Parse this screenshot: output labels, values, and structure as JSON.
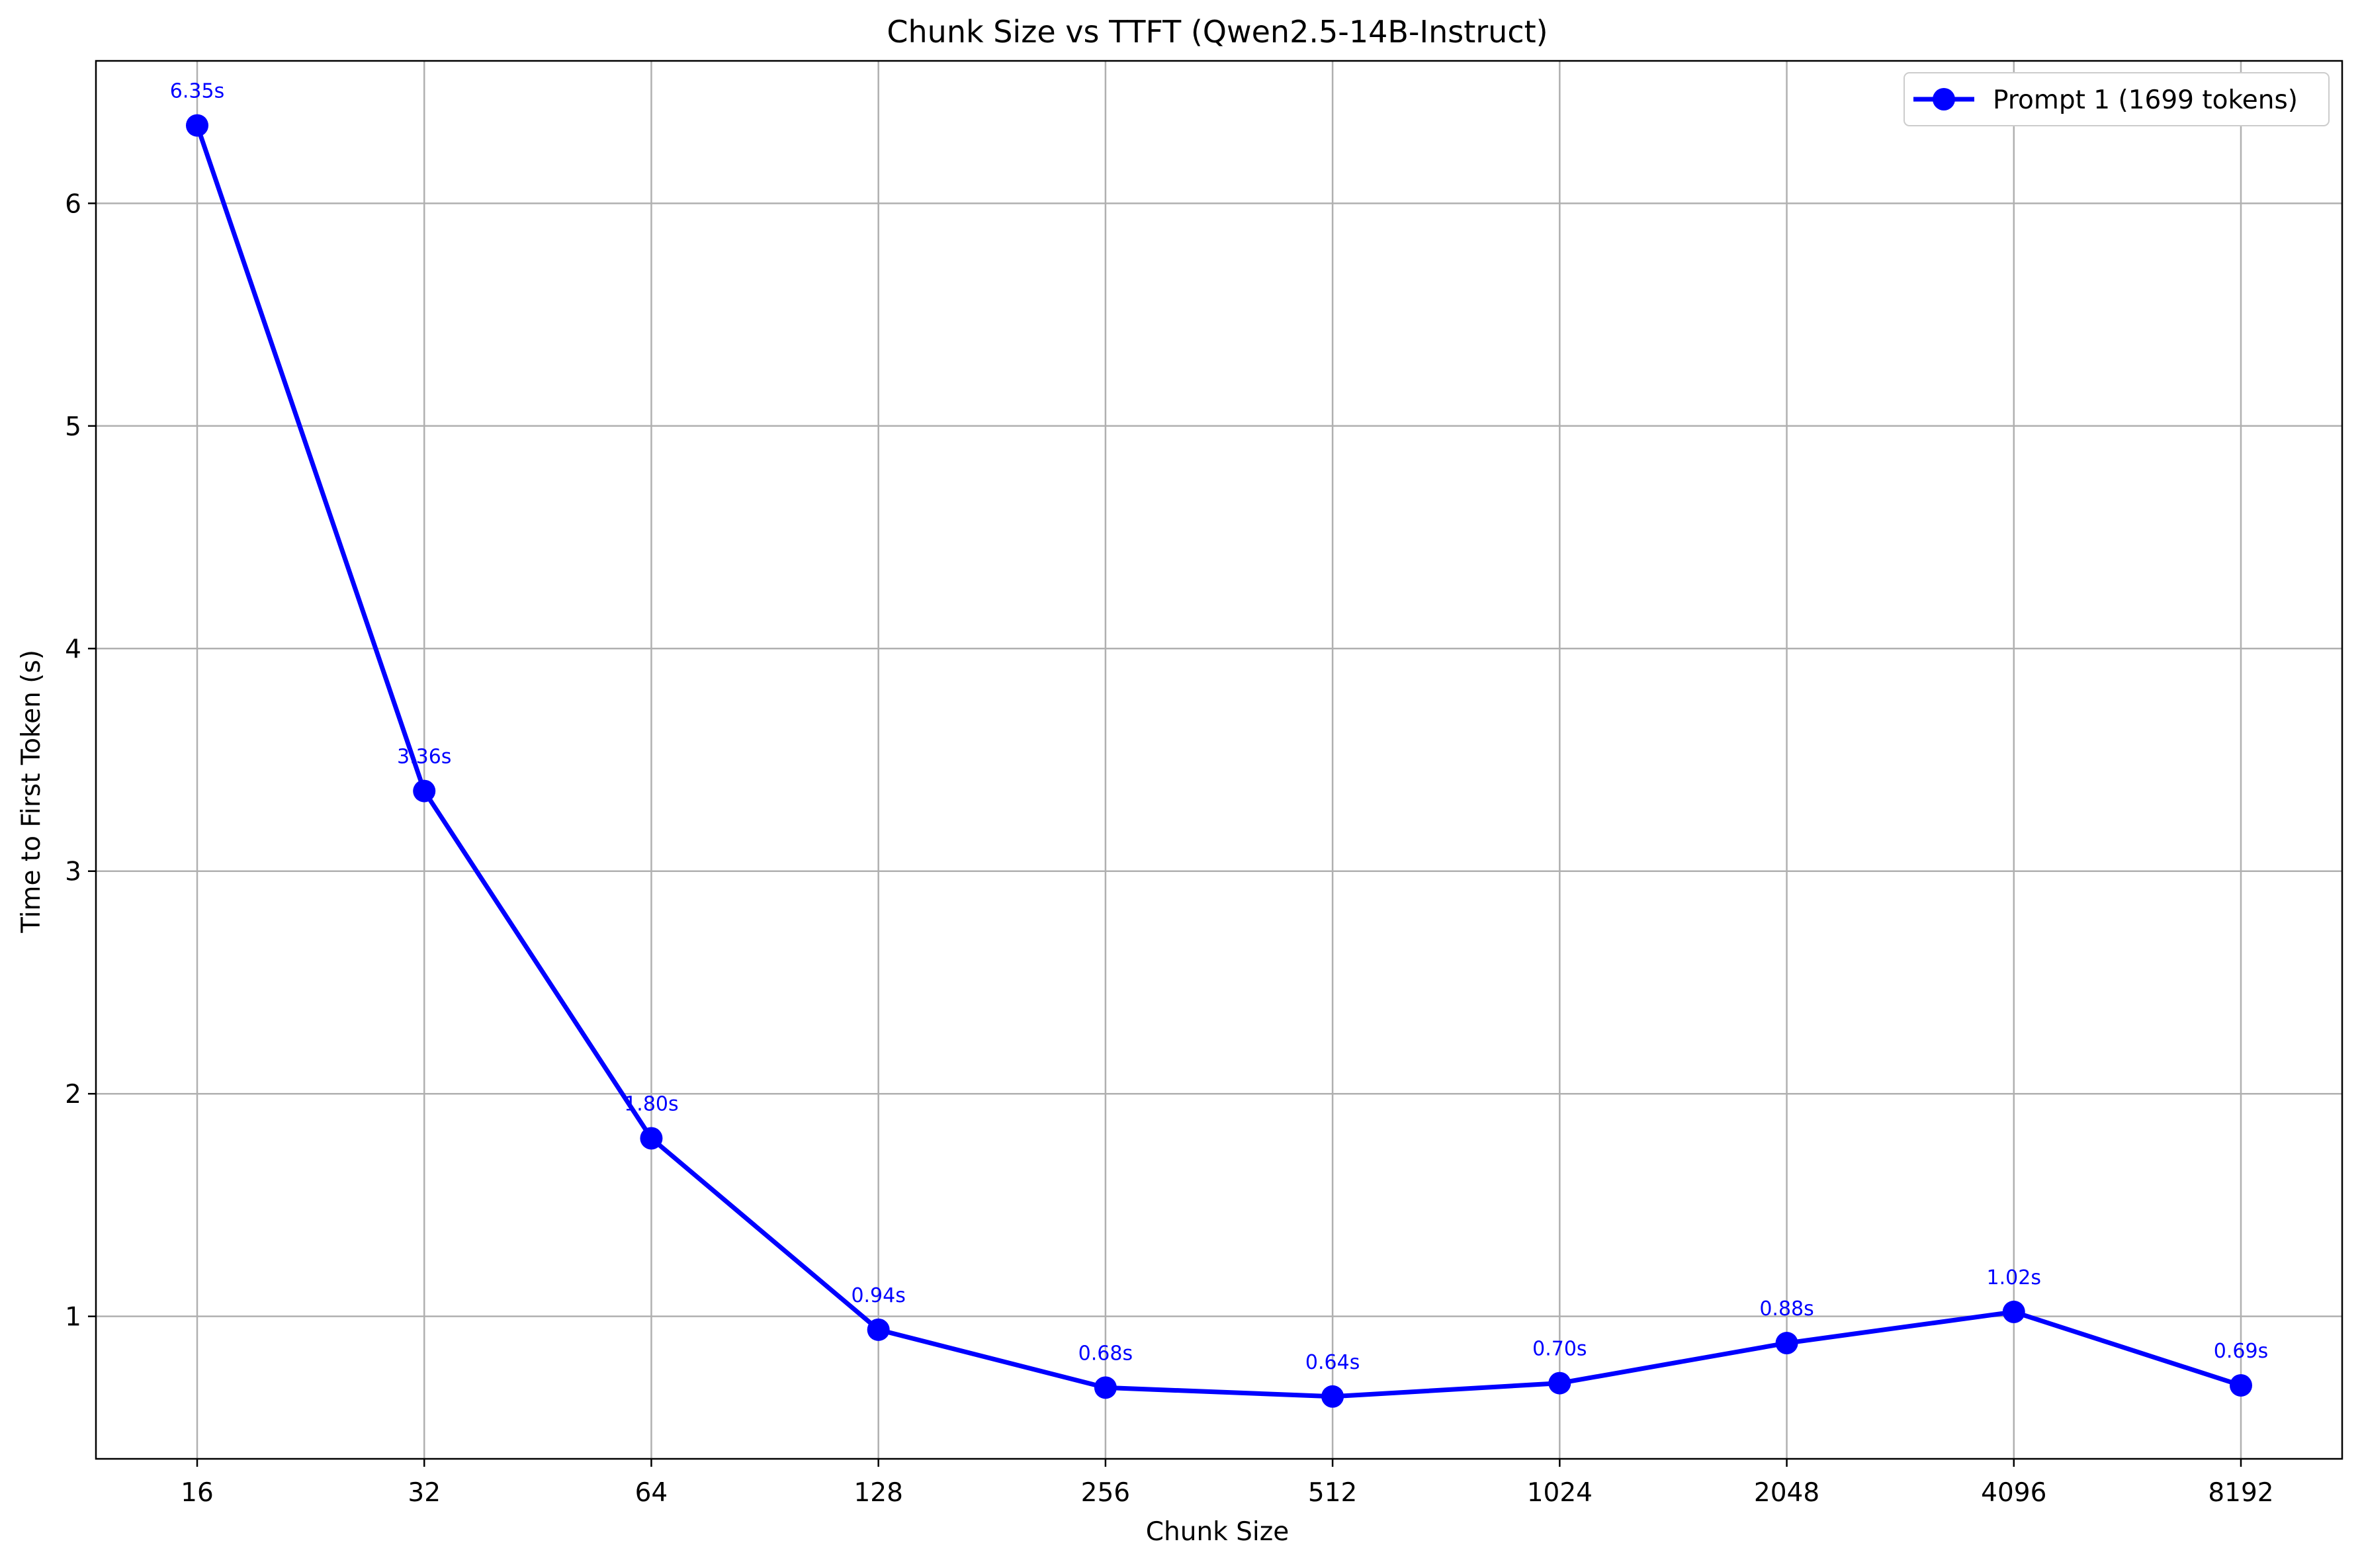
{
  "colors": {
    "series": "#0000ff",
    "grid": "#b0b0b0",
    "axis": "#000000",
    "background": "#ffffff",
    "legend_border": "#cccccc"
  },
  "chart_data": {
    "type": "line",
    "title": "Chunk Size vs TTFT (Qwen2.5-14B-Instruct)",
    "xlabel": "Chunk Size",
    "ylabel": "Time to First Token (s)",
    "x_scale": "log2 (categorical ticks)",
    "categories": [
      "16",
      "32",
      "64",
      "128",
      "256",
      "512",
      "1024",
      "2048",
      "4096",
      "8192"
    ],
    "ylim": [
      0.36,
      6.64
    ],
    "yticks": [
      1,
      2,
      3,
      4,
      5,
      6
    ],
    "grid": true,
    "legend_position": "top-right",
    "series": [
      {
        "name": "Prompt 1 (1699 tokens)",
        "color": "#0000ff",
        "marker": "circle",
        "values": [
          6.35,
          3.36,
          1.8,
          0.94,
          0.68,
          0.64,
          0.7,
          0.88,
          1.02,
          0.69
        ],
        "data_labels": [
          "6.35s",
          "3.36s",
          "1.80s",
          "0.94s",
          "0.68s",
          "0.64s",
          "0.70s",
          "0.88s",
          "1.02s",
          "0.69s"
        ]
      }
    ]
  }
}
